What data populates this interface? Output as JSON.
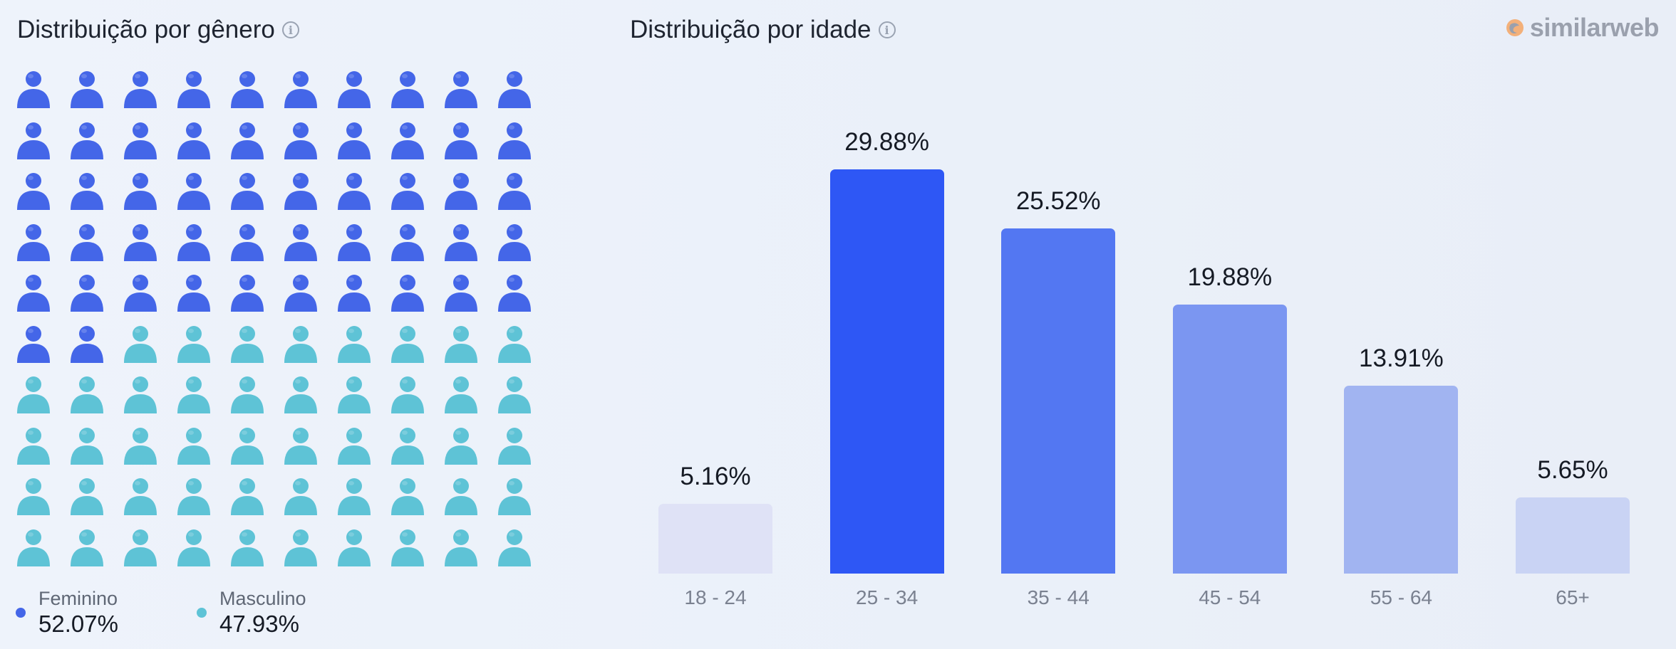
{
  "gender": {
    "title": "Distribuição por gênero",
    "female": {
      "label": "Feminino",
      "value": "52.07%",
      "share": 0.5207,
      "color": "#4466e8"
    },
    "male": {
      "label": "Masculino",
      "value": "47.93%",
      "share": 0.4793,
      "color": "#5ec3d6"
    },
    "grid": {
      "rows": 10,
      "cols": 10
    }
  },
  "age": {
    "title": "Distribuição por idade"
  },
  "logo": {
    "text": "similarweb"
  },
  "chart_data": [
    {
      "type": "pictogram",
      "title": "Distribuição por gênero",
      "categories": [
        "Feminino",
        "Masculino"
      ],
      "values": [
        52.07,
        47.93
      ],
      "unit": "%",
      "colors": [
        "#4466e8",
        "#5ec3d6"
      ]
    },
    {
      "type": "bar",
      "title": "Distribuição por idade",
      "categories": [
        "18 - 24",
        "25 - 34",
        "35 - 44",
        "45 - 54",
        "55 - 64",
        "65+"
      ],
      "values": [
        5.16,
        29.88,
        25.52,
        19.88,
        13.91,
        5.65
      ],
      "labels": [
        "5.16%",
        "29.88%",
        "25.52%",
        "19.88%",
        "13.91%",
        "5.65%"
      ],
      "colors": [
        "#dfe2f6",
        "#2e57f5",
        "#5377f2",
        "#7b96f1",
        "#a1b4f1",
        "#c9d3f4"
      ],
      "xlabel": "",
      "ylabel": "",
      "grid": false,
      "legend": false
    }
  ]
}
